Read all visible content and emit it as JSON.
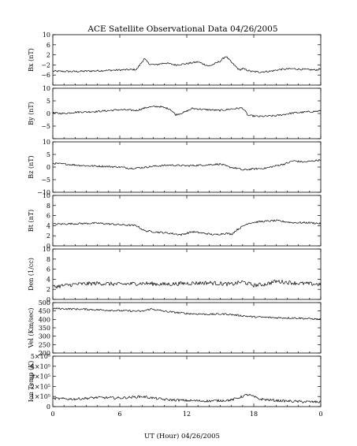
{
  "chart_data": {
    "type": "line",
    "title": "ACE Satellite Observational Data   04/26/2005",
    "xlabel": "UT (Hour)   04/26/2005",
    "x_ticks": [
      "0",
      "6",
      "12",
      "18",
      "0"
    ],
    "xlim": [
      0,
      24
    ],
    "line_color": "#000000",
    "panels": [
      {
        "name": "bx",
        "ylabel": "Bx (nT)",
        "ylim": [
          -10,
          10
        ],
        "y_ticks": [
          -10,
          -6,
          -2,
          2,
          6,
          10
        ],
        "y_tick_labels": [
          "",
          "−6",
          "−2",
          "2",
          "6",
          "10"
        ],
        "x": [
          0,
          2,
          4,
          6,
          7.5,
          8.2,
          8.6,
          9.2,
          10,
          11,
          12,
          13,
          14,
          15,
          15.5,
          16,
          16.7,
          17,
          17.8,
          18.5,
          19.5,
          20.3,
          21.5,
          22.5,
          23.5,
          24
        ],
        "values": [
          -4.5,
          -4.6,
          -4.3,
          -4.0,
          -3.8,
          0.5,
          -1.5,
          -2.0,
          -1.2,
          -2.0,
          -1.5,
          -0.8,
          -2.5,
          -0.5,
          1.5,
          -1.0,
          -4.0,
          -3.5,
          -4.6,
          -4.8,
          -4.5,
          -3.8,
          -3.5,
          -3.8,
          -4.0,
          -3.6
        ]
      },
      {
        "name": "by",
        "ylabel": "By (nT)",
        "ylim": [
          -10,
          10
        ],
        "y_ticks": [
          -10,
          -5,
          0,
          5,
          10
        ],
        "y_tick_labels": [
          "",
          "−5",
          "0",
          "5",
          "10"
        ],
        "x": [
          0,
          1,
          2,
          4,
          6,
          7.5,
          8.5,
          9.5,
          10.5,
          11,
          11.8,
          12.5,
          13.5,
          15,
          16,
          17,
          17.5,
          18.5,
          20,
          21.5,
          22.5,
          24
        ],
        "values": [
          0.2,
          0.0,
          0.5,
          0.8,
          1.5,
          1.2,
          2.5,
          2.8,
          1.8,
          -0.5,
          0.5,
          2.0,
          1.6,
          1.2,
          1.8,
          2.2,
          -0.8,
          -1.2,
          -0.9,
          0.2,
          0.5,
          1.0
        ]
      },
      {
        "name": "bz",
        "ylabel": "Bz (nT)",
        "ylim": [
          -10,
          10
        ],
        "y_ticks": [
          -10,
          -5,
          0,
          5,
          10
        ],
        "y_tick_labels": [
          "−10",
          "−5",
          "0",
          "5",
          "10"
        ],
        "x": [
          0,
          1.5,
          3,
          4.5,
          6,
          7,
          8,
          9,
          10.5,
          12,
          13.5,
          15,
          15.8,
          16.5,
          17,
          17.8,
          19,
          20,
          21,
          21.5,
          22.5,
          24
        ],
        "values": [
          1.5,
          1.0,
          0.5,
          0.3,
          0.0,
          -0.5,
          -0.2,
          0.3,
          0.8,
          0.5,
          0.8,
          1.2,
          0.0,
          -0.5,
          -1.2,
          -0.8,
          -0.5,
          0.5,
          1.5,
          2.5,
          2.0,
          2.8
        ]
      },
      {
        "name": "bt",
        "ylabel": "Bt (nT)",
        "ylim": [
          0,
          10
        ],
        "y_ticks": [
          0,
          2,
          4,
          6,
          8,
          10
        ],
        "y_tick_labels": [
          "0",
          "2",
          "4",
          "6",
          "8",
          "10"
        ],
        "x": [
          0,
          2,
          4,
          6,
          7.5,
          8.2,
          9,
          10.5,
          11.5,
          12.5,
          13.5,
          14.5,
          15.5,
          16,
          16.5,
          17.5,
          18.5,
          20,
          21.5,
          23,
          24
        ],
        "values": [
          4.3,
          4.4,
          4.5,
          4.2,
          4.0,
          3.0,
          2.8,
          2.5,
          2.2,
          2.8,
          2.5,
          2.2,
          2.5,
          2.3,
          3.2,
          4.5,
          4.8,
          5.0,
          4.6,
          4.6,
          4.4
        ]
      },
      {
        "name": "den",
        "ylabel": "Den (1/cc)",
        "ylim": [
          0,
          10
        ],
        "y_ticks": [
          0,
          2,
          4,
          6,
          8,
          10
        ],
        "y_tick_labels": [
          "0",
          "2",
          "4",
          "6",
          "8",
          "10"
        ],
        "x": [
          0,
          2,
          4,
          6,
          8,
          10,
          12,
          14,
          16,
          17,
          18,
          19,
          20,
          22,
          24
        ],
        "values": [
          2.5,
          3.0,
          3.2,
          3.0,
          3.2,
          3.0,
          3.2,
          3.3,
          3.0,
          3.5,
          2.8,
          3.0,
          3.6,
          3.2,
          3.0
        ]
      },
      {
        "name": "vel",
        "ylabel": "Vel (Km/sec)",
        "ylim": [
          200,
          500
        ],
        "y_ticks": [
          200,
          250,
          300,
          350,
          400,
          450,
          500
        ],
        "y_tick_labels": [
          "200",
          "250",
          "300",
          "350",
          "400",
          "450",
          "500"
        ],
        "x": [
          0,
          3,
          6,
          8,
          8.8,
          10,
          12,
          14,
          15.5,
          16.5,
          18,
          20,
          22,
          24
        ],
        "values": [
          465,
          460,
          452,
          448,
          462,
          448,
          435,
          430,
          432,
          425,
          415,
          410,
          408,
          400
        ]
      },
      {
        "name": "temp",
        "ylabel": "Ion Temp (K)",
        "ylim": [
          0,
          500000
        ],
        "y_ticks": [
          0,
          100000,
          200000,
          300000,
          400000,
          500000
        ],
        "y_tick_labels": [
          "0",
          "1×10⁵",
          "2×10⁵",
          "3×10⁵",
          "4×10⁵",
          "5×10⁵"
        ],
        "x": [
          0,
          2,
          4,
          6,
          8,
          10,
          12,
          14,
          16,
          17.5,
          18.5,
          20,
          22,
          24
        ],
        "values": [
          80000,
          75000,
          90000,
          85000,
          100000,
          70000,
          60000,
          55000,
          65000,
          120000,
          75000,
          60000,
          50000,
          45000
        ]
      }
    ]
  }
}
